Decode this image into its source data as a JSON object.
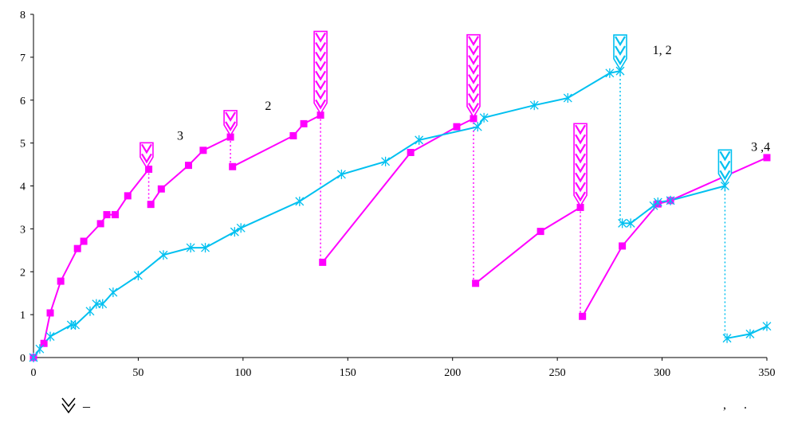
{
  "chart_data": {
    "type": "line",
    "xlim": [
      0,
      350
    ],
    "ylim": [
      0,
      8
    ],
    "x_ticks": [
      0,
      50,
      100,
      150,
      200,
      250,
      300,
      350
    ],
    "y_ticks": [
      0,
      1,
      2,
      3,
      4,
      5,
      6,
      7,
      8
    ],
    "grid": false,
    "colors": {
      "magenta": "#ff00ff",
      "cyan": "#00c0f0"
    },
    "series": [
      {
        "color": "#ff00ff",
        "marker": "square",
        "segments": [
          [
            [
              0,
              0
            ],
            [
              5,
              0.33
            ],
            [
              8,
              1.04
            ],
            [
              13,
              1.78
            ],
            [
              21,
              2.54
            ],
            [
              24,
              2.71
            ],
            [
              32,
              3.12
            ],
            [
              35,
              3.33
            ],
            [
              39,
              3.33
            ],
            [
              45,
              3.77
            ],
            [
              55,
              4.39
            ]
          ],
          [
            [
              56,
              3.57
            ],
            [
              61,
              3.93
            ],
            [
              74,
              4.48
            ],
            [
              81,
              4.83
            ],
            [
              94,
              5.14
            ]
          ],
          [
            [
              95,
              4.45
            ],
            [
              124,
              5.17
            ],
            [
              129,
              5.45
            ],
            [
              137,
              5.65
            ]
          ],
          [
            [
              138,
              2.22
            ],
            [
              180,
              4.78
            ],
            [
              202,
              5.38
            ],
            [
              210,
              5.57
            ]
          ],
          [
            [
              211,
              1.73
            ],
            [
              242,
              2.94
            ],
            [
              261,
              3.5
            ]
          ],
          [
            [
              262,
              0.96
            ],
            [
              281,
              2.6
            ],
            [
              298,
              3.58
            ],
            [
              304,
              3.66
            ],
            [
              350,
              4.66
            ]
          ]
        ],
        "drops": [
          [
            55,
            4.39,
            3.57
          ],
          [
            94,
            5.14,
            4.45
          ],
          [
            137,
            5.65,
            2.22
          ],
          [
            210,
            5.57,
            1.73
          ],
          [
            261,
            3.5,
            0.96
          ]
        ]
      },
      {
        "color": "#00c0f0",
        "marker": "asterisk",
        "segments": [
          [
            [
              0,
              0
            ],
            [
              3,
              0.2
            ],
            [
              8,
              0.49
            ],
            [
              18,
              0.76
            ],
            [
              20,
              0.76
            ],
            [
              27,
              1.08
            ],
            [
              30,
              1.25
            ],
            [
              33,
              1.25
            ],
            [
              38,
              1.52
            ],
            [
              50,
              1.91
            ],
            [
              62,
              2.39
            ],
            [
              75,
              2.56
            ],
            [
              82,
              2.56
            ],
            [
              96,
              2.93
            ],
            [
              99,
              3.02
            ],
            [
              127,
              3.64
            ],
            [
              147,
              4.27
            ],
            [
              168,
              4.57
            ],
            [
              184,
              5.07
            ],
            [
              212,
              5.38
            ],
            [
              215,
              5.59
            ],
            [
              239,
              5.88
            ],
            [
              255,
              6.05
            ],
            [
              275,
              6.63
            ],
            [
              280,
              6.68
            ]
          ],
          [
            [
              281,
              3.13
            ],
            [
              285,
              3.13
            ],
            [
              296,
              3.54
            ],
            [
              298,
              3.62
            ],
            [
              304,
              3.66
            ],
            [
              330,
              4.0
            ]
          ],
          [
            [
              331,
              0.45
            ],
            [
              342,
              0.55
            ],
            [
              350,
              0.73
            ]
          ]
        ],
        "drops": [
          [
            280,
            6.68,
            3.13
          ],
          [
            330,
            4.0,
            0.45
          ]
        ]
      }
    ],
    "event_markers": [
      {
        "x": 54,
        "y": 4.39,
        "count": 2,
        "color": "#ff00ff"
      },
      {
        "x": 94,
        "y": 5.14,
        "count": 2,
        "color": "#ff00ff"
      },
      {
        "x": 137,
        "y": 5.65,
        "count": 8,
        "color": "#ff00ff"
      },
      {
        "x": 210,
        "y": 5.57,
        "count": 8,
        "color": "#ff00ff"
      },
      {
        "x": 261,
        "y": 3.5,
        "count": 8,
        "color": "#ff00ff"
      },
      {
        "x": 280,
        "y": 6.68,
        "count": 3,
        "color": "#00c0f0"
      },
      {
        "x": 330,
        "y": 4.0,
        "count": 3,
        "color": "#00c0f0"
      }
    ],
    "annotations": [
      {
        "text": "3",
        "x": 70,
        "y": 5.08
      },
      {
        "text": "2",
        "x": 112,
        "y": 5.77
      },
      {
        "text": "1, 2",
        "x": 300,
        "y": 7.07
      },
      {
        "text": "3 ,4",
        "x": 347,
        "y": 4.82
      }
    ]
  },
  "legend": {
    "icon": "chevron-arrow-icon",
    "dash": "–"
  },
  "footer": {
    "left": ",",
    "right": "."
  }
}
